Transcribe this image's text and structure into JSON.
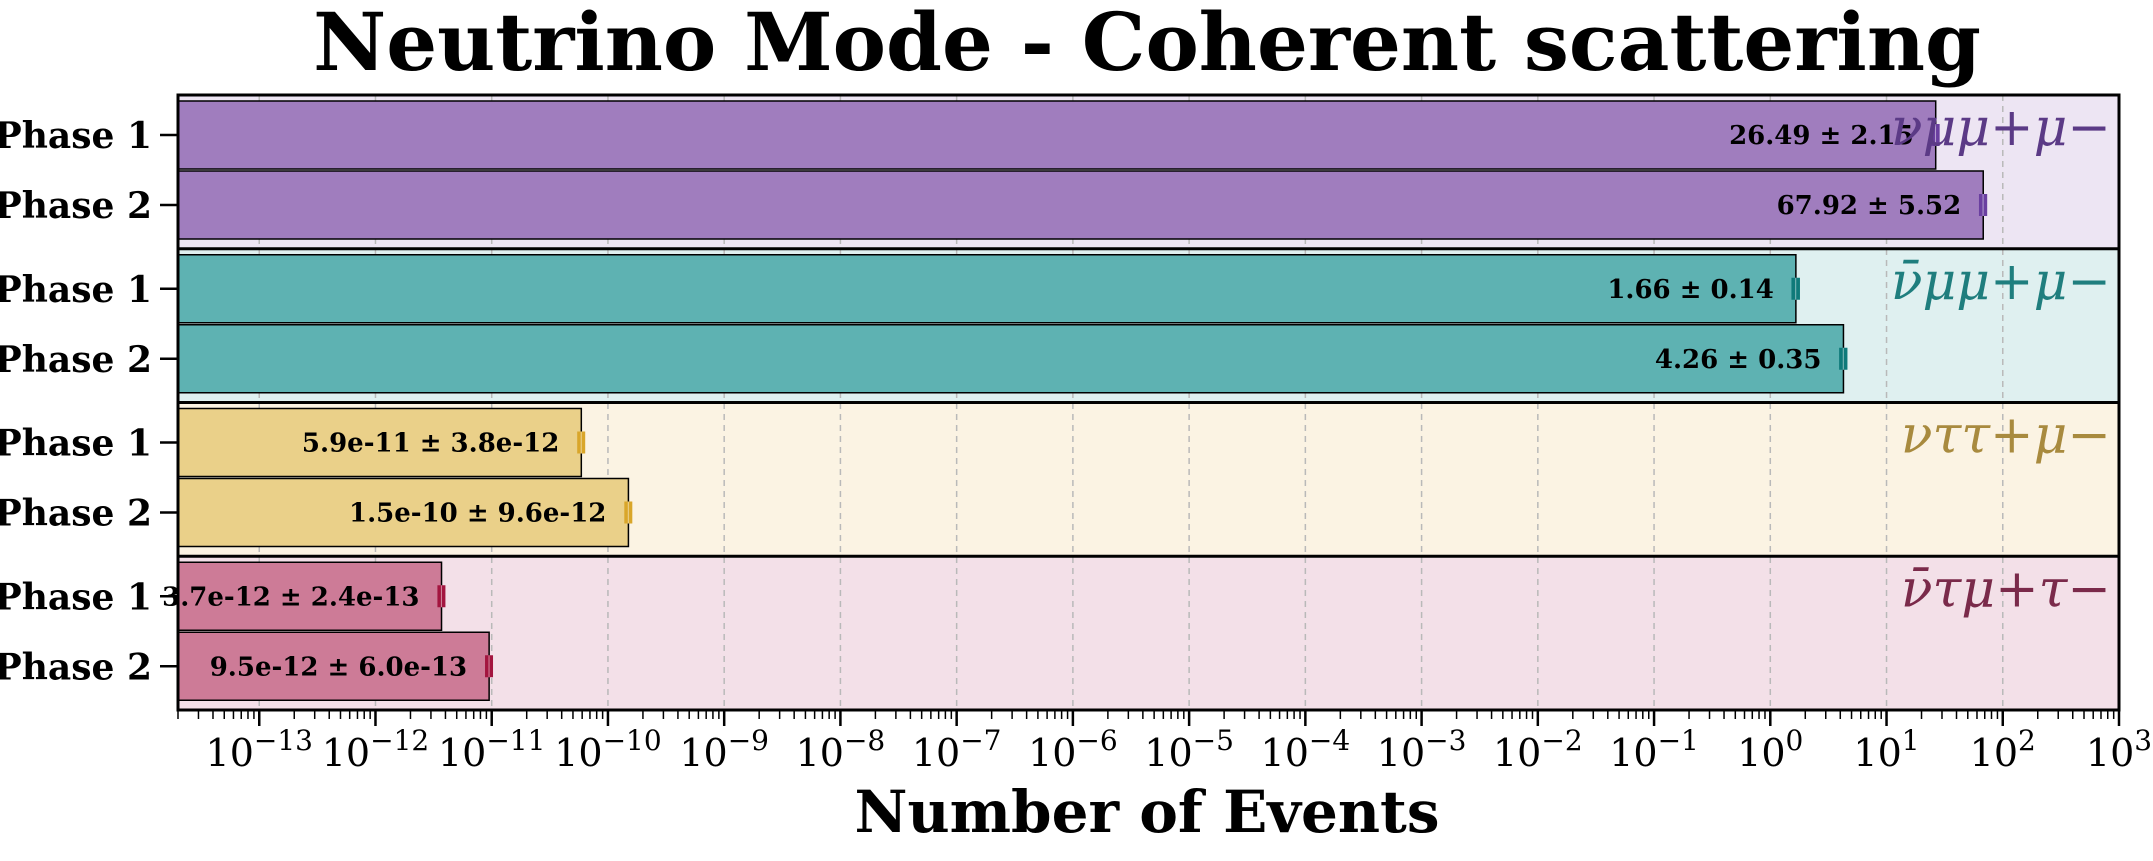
{
  "chart_data": {
    "type": "bar",
    "orientation": "horizontal",
    "title": "Neutrino Mode - Coherent scattering",
    "xlabel": "Number of Events",
    "xscale": "log",
    "xlim": [
      2e-14,
      1000
    ],
    "x_tick_labels": [
      "10−13",
      "10−12",
      "10−11",
      "10−10",
      "10−9",
      "10−8",
      "10−7",
      "10−6",
      "10−5",
      "10−4",
      "10−3",
      "10−2",
      "10−1",
      "100",
      "101",
      "102",
      "103"
    ],
    "x_tick_exponents": [
      -13,
      -12,
      -11,
      -10,
      -9,
      -8,
      -7,
      -6,
      -5,
      -4,
      -3,
      -2,
      -1,
      0,
      1,
      2,
      3
    ],
    "grid": "x, dashed",
    "categories": [
      "Phase 1",
      "Phase 2"
    ],
    "groups": [
      {
        "name": "νμμ+μ−",
        "color": "#a07dbe",
        "bg_color": "#ede5f3",
        "label_color": "#5b3a86",
        "err_color": "#6a3fa0",
        "bars": [
          {
            "category": "Phase 1",
            "value": 26.49,
            "error": 2.15,
            "label": "26.49 ± 2.15"
          },
          {
            "category": "Phase 2",
            "value": 67.92,
            "error": 5.52,
            "label": "67.92 ± 5.52"
          }
        ]
      },
      {
        "name": "ν̄μμ+μ−",
        "color": "#5eb2b2",
        "bg_color": "#dff0f0",
        "label_color": "#1f7e7e",
        "err_color": "#0f7a7a",
        "bars": [
          {
            "category": "Phase 1",
            "value": 1.66,
            "error": 0.14,
            "label": "1.66 ± 0.14"
          },
          {
            "category": "Phase 2",
            "value": 4.26,
            "error": 0.35,
            "label": "4.26 ± 0.35"
          }
        ]
      },
      {
        "name": "νττ+μ−",
        "color": "#ead089",
        "bg_color": "#fbf3e3",
        "label_color": "#a88a3e",
        "err_color": "#d9a62a",
        "bars": [
          {
            "category": "Phase 1",
            "value": 5.9e-11,
            "error": 3.8e-12,
            "label": "5.9e-11 ± 3.8e-12"
          },
          {
            "category": "Phase 2",
            "value": 1.5e-10,
            "error": 9.6e-12,
            "label": "1.5e-10 ± 9.6e-12"
          }
        ]
      },
      {
        "name": "ν̄τμ+τ−",
        "color": "#cd7b97",
        "bg_color": "#f3e0e8",
        "label_color": "#7a2a4a",
        "err_color": "#a3153f",
        "bars": [
          {
            "category": "Phase 1",
            "value": 3.7e-12,
            "error": 2.4e-13,
            "label": "3.7e-12 ± 2.4e-13"
          },
          {
            "category": "Phase 2",
            "value": 9.5e-12,
            "error": 6e-13,
            "label": "9.5e-12 ± 6.0e-13"
          }
        ]
      }
    ]
  }
}
